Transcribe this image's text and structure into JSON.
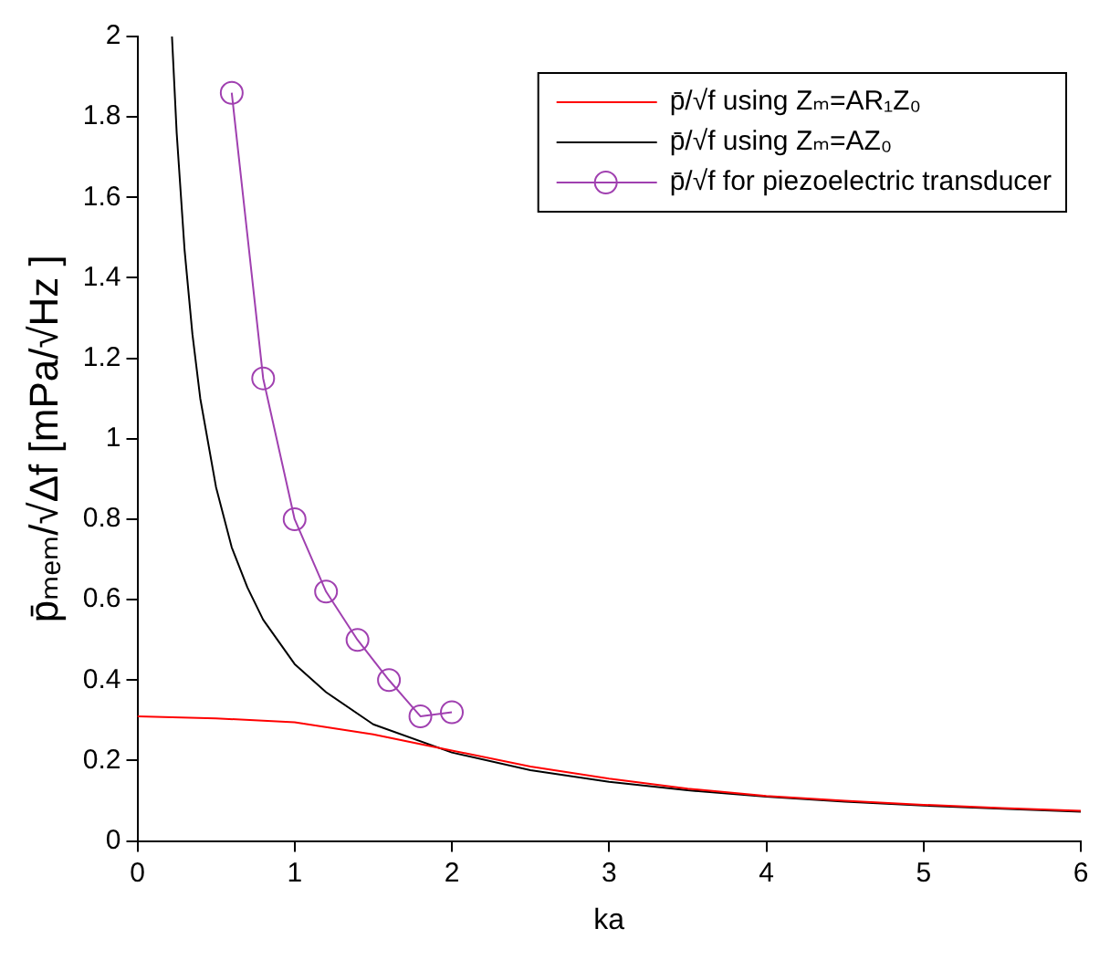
{
  "chart_data": {
    "type": "line",
    "xlabel": "ka",
    "ylabel": "p̄ₘₑₘ/√Δf [mPa/√Hz ]",
    "xlim": [
      0,
      6
    ],
    "xticks": [
      0,
      1,
      2,
      3,
      4,
      5,
      6
    ],
    "ylim": [
      0,
      2
    ],
    "yticks": [
      0,
      0.2,
      0.4,
      0.6,
      0.8,
      1,
      1.2,
      1.4,
      1.6,
      1.8,
      2
    ],
    "grid": false,
    "legend": "top right",
    "series": [
      {
        "name": "p̄/√f using Zₘ=AR₁Z₀",
        "color": "#ff0000",
        "marker": "none",
        "x": [
          0,
          0.5,
          1,
          1.5,
          2,
          2.5,
          3,
          3.5,
          4,
          4.5,
          5,
          5.5,
          6
        ],
        "values": [
          0.31,
          0.305,
          0.295,
          0.265,
          0.225,
          0.185,
          0.155,
          0.13,
          0.112,
          0.1,
          0.09,
          0.082,
          0.075
        ]
      },
      {
        "name": "p̄/√f using Zₘ=AZ₀",
        "color": "#000000",
        "marker": "none",
        "x": [
          0.22,
          0.25,
          0.3,
          0.35,
          0.4,
          0.5,
          0.6,
          0.7,
          0.8,
          1,
          1.2,
          1.5,
          2,
          2.5,
          3,
          3.5,
          4,
          4.5,
          5,
          5.5,
          6
        ],
        "values": [
          2,
          1.76,
          1.47,
          1.26,
          1.1,
          0.88,
          0.73,
          0.63,
          0.55,
          0.44,
          0.37,
          0.29,
          0.22,
          0.176,
          0.147,
          0.126,
          0.11,
          0.098,
          0.088,
          0.08,
          0.073
        ]
      },
      {
        "name": "p̄/√f for piezoelectric transducer",
        "color": "#a040b0",
        "marker": "circle",
        "x": [
          0.6,
          0.8,
          1,
          1.2,
          1.4,
          1.6,
          1.8,
          2
        ],
        "values": [
          1.86,
          1.15,
          0.8,
          0.62,
          0.5,
          0.4,
          0.31,
          0.32
        ]
      }
    ]
  }
}
